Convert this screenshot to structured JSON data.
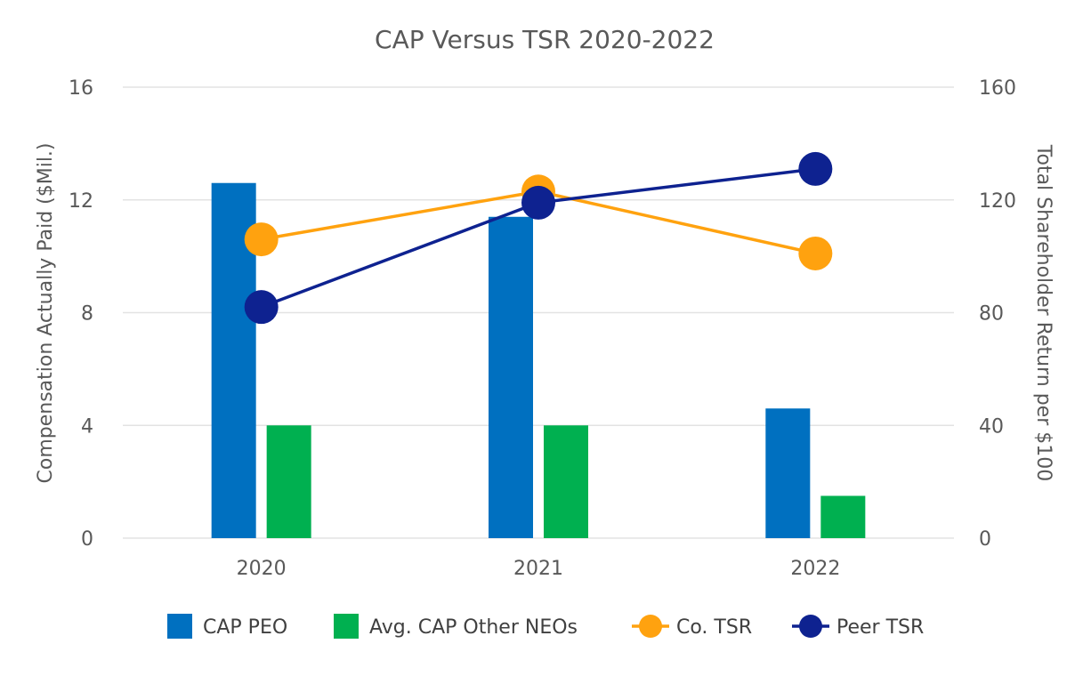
{
  "chart_data": {
    "type": "bar",
    "title": "CAP Versus TSR 2020-2022",
    "categories": [
      "2020",
      "2021",
      "2022"
    ],
    "ylabel": "Compensation Actually Paid ($Mil.)",
    "y2label": "Total Shareholder Return per $100",
    "ylim": [
      0,
      16
    ],
    "y2lim": [
      0,
      160
    ],
    "yticks": [
      "0",
      "4",
      "8",
      "12",
      "16"
    ],
    "y2ticks": [
      "0",
      "40",
      "80",
      "120",
      "160"
    ],
    "grid": true,
    "legend_position": "bottom",
    "series": [
      {
        "name": "CAP PEO",
        "kind": "bar",
        "axis": "left",
        "color": "#0070C0",
        "values": [
          12.6,
          11.4,
          4.6
        ]
      },
      {
        "name": "Avg. CAP Other NEOs",
        "kind": "bar",
        "axis": "left",
        "color": "#00B050",
        "values": [
          4.0,
          4.0,
          1.5
        ]
      },
      {
        "name": "Co. TSR",
        "kind": "line",
        "axis": "right",
        "color": "#FFA20F",
        "values": [
          106,
          123,
          101
        ]
      },
      {
        "name": "Peer TSR",
        "kind": "line",
        "axis": "right",
        "color": "#0E2290",
        "values": [
          82,
          119,
          131
        ]
      }
    ]
  }
}
